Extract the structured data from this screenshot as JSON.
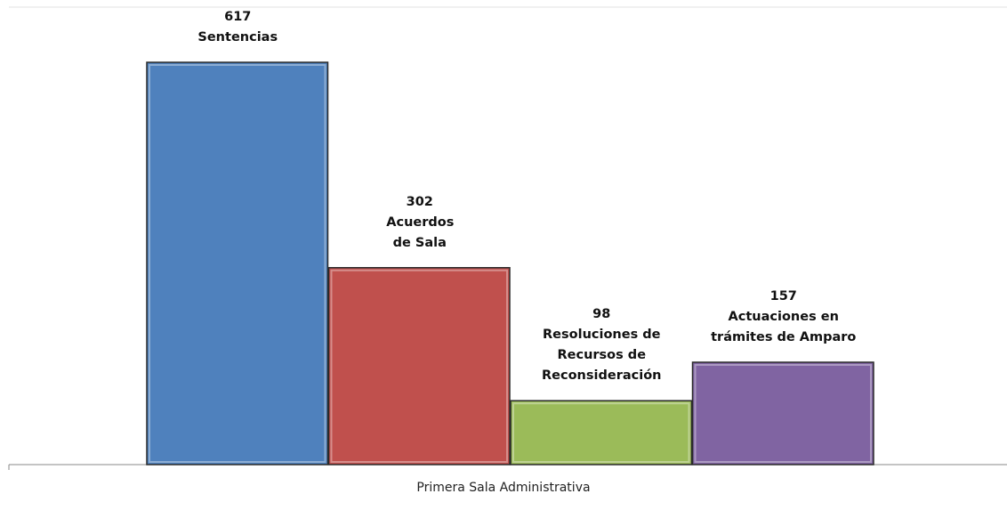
{
  "chart_data": {
    "type": "bar",
    "categories": [
      "Primera Sala Administrativa"
    ],
    "series": [
      {
        "name": "Sentencias",
        "color": "#4f81bd",
        "values": [
          617
        ]
      },
      {
        "name": "Acuerdos de Sala",
        "color": "#c0504d",
        "values": [
          302
        ]
      },
      {
        "name": "Resoluciones de Recursos de Reconsideración",
        "color": "#9bbb59",
        "values": [
          98
        ]
      },
      {
        "name": "Actuaciones en trámites de Amparo",
        "color": "#8064a2",
        "values": [
          157
        ]
      }
    ]
  }
}
